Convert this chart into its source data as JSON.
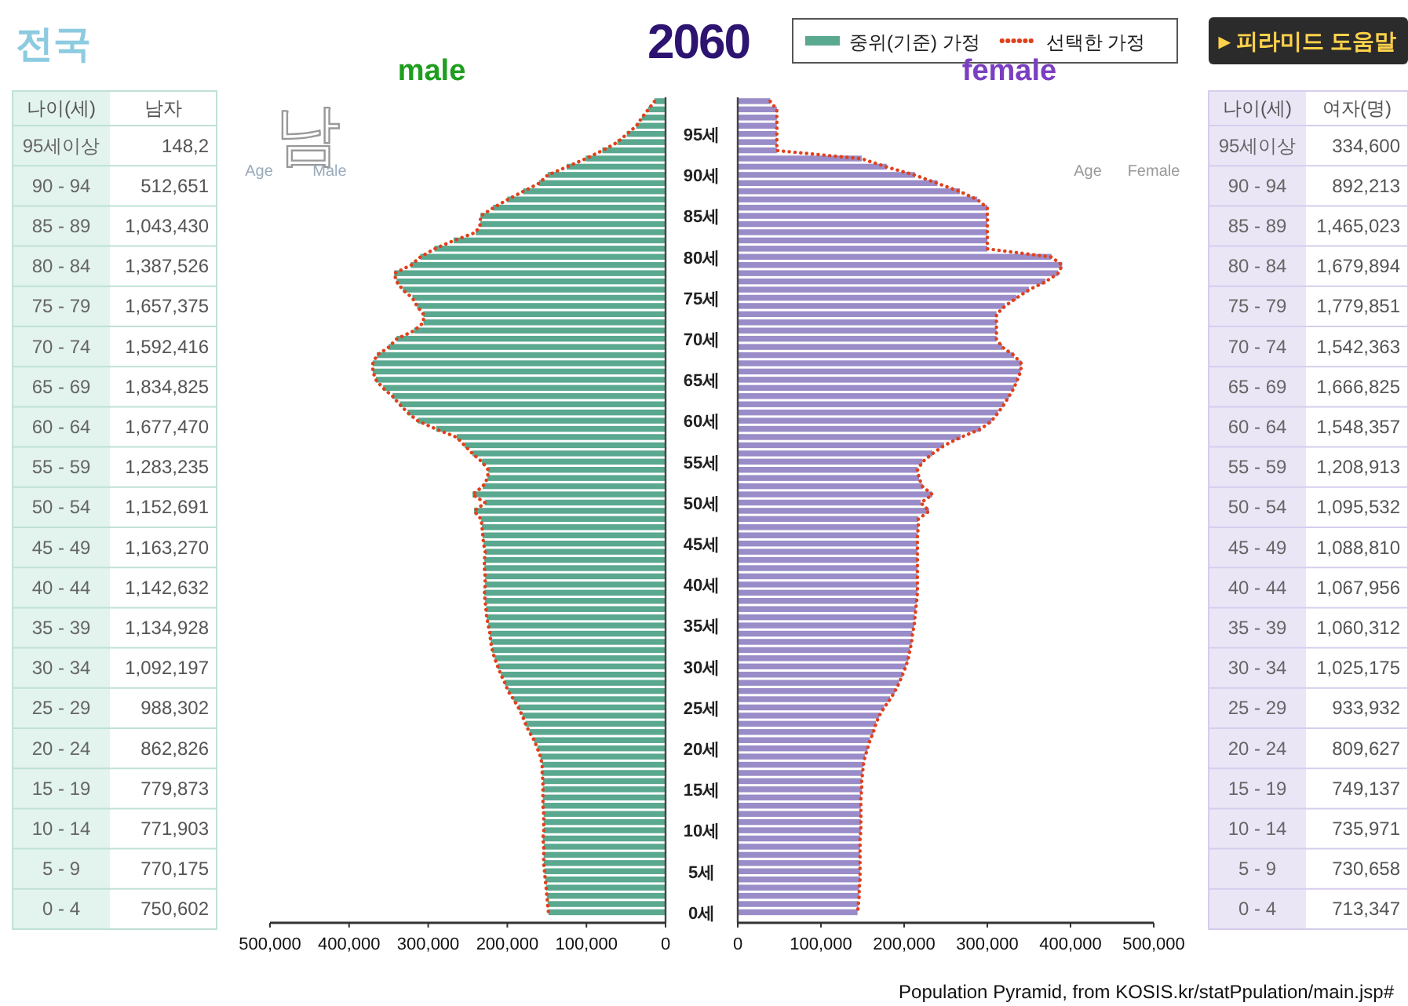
{
  "chart_data": [
    {
      "type": "other",
      "title": "2060",
      "annotations": [
        "전국",
        "▸ 피라미드 도움말",
        "Population Pyramid, from KOSIS.kr/statPpulation/main.jsp#"
      ]
    },
    {
      "type": "other",
      "annotations": [
        "나이(세)",
        "남자",
        "95세이상",
        "148,2",
        "90 - 94",
        "512,651",
        "85 - 89",
        "1,043,430",
        "80 - 84",
        "1,387,526",
        "75 - 79",
        "1,657,375",
        "70 - 74",
        "1,592,416",
        "65 - 69",
        "1,834,825",
        "60 - 64",
        "1,677,470",
        "55 - 59",
        "1,283,235",
        "50 - 54",
        "1,152,691",
        "45 - 49",
        "1,163,270",
        "40 - 44",
        "1,142,632",
        "35 - 39",
        "1,134,928",
        "30 - 34",
        "1,092,197",
        "25 - 29",
        "988,302",
        "20 - 24",
        "862,826",
        "15 - 19",
        "779,873",
        "10 - 14",
        "771,903",
        "5 - 9",
        "770,175",
        "0 - 4",
        "750,602"
      ]
    },
    {
      "type": "bar",
      "orientation": "horizontal",
      "title": "male",
      "legend": "top",
      "tick_labels": "x",
      "annotations": [
        "남",
        "Age",
        "Male"
      ],
      "xlim": [
        500000,
        0
      ],
      "xticks": [
        {
          "value": 500000,
          "label": "500,000"
        },
        {
          "value": 400000,
          "label": "400,000"
        },
        {
          "value": 300000,
          "label": "300,000"
        },
        {
          "value": 200000,
          "label": "200,000"
        },
        {
          "value": 100000,
          "label": "100,000"
        },
        0
      ],
      "categories": [
        null,
        null,
        null,
        null,
        null,
        null,
        null,
        null,
        null,
        null,
        null,
        null,
        null,
        null,
        null,
        null,
        null,
        null,
        null,
        null,
        null,
        null,
        null,
        null,
        null,
        null,
        null,
        null,
        null,
        null,
        null,
        null,
        null,
        null,
        null,
        null,
        null,
        null,
        null,
        null,
        null,
        null,
        null,
        null,
        null,
        null,
        null,
        null,
        null,
        null,
        null,
        null,
        null,
        null,
        null,
        null,
        null,
        null,
        null,
        null,
        null,
        null,
        null,
        null,
        null,
        null,
        null,
        null,
        null,
        null,
        null,
        null,
        null,
        null,
        null,
        null,
        null,
        null,
        null,
        null,
        null,
        null,
        null,
        null,
        null,
        null,
        null,
        null,
        null,
        null,
        null,
        null,
        null,
        null,
        null,
        null,
        null,
        null,
        null,
        null
      ],
      "series": [
        {
          "name": "중위(기준) 가정",
          "color": "#5aa88f",
          "values": [
            14000,
            22000,
            30000,
            37000,
            49000,
            61000,
            80000,
            101000,
            125000,
            149000,
            160000,
            180000,
            200000,
            218000,
            234000,
            234000,
            240000,
            268000,
            292000,
            310000,
            322000,
            343000,
            340000,
            332000,
            320000,
            314000,
            306000,
            306000,
            318000,
            340000,
            350000,
            365000,
            370000,
            370000,
            366000,
            357000,
            345000,
            336000,
            326000,
            313000,
            290000,
            264000,
            254000,
            244000,
            232000,
            224000,
            225000,
            231000,
            244000,
            228000,
            242000,
            233000,
            232000,
            231000,
            230000,
            228000,
            229000,
            229000,
            228000,
            228000,
            229000,
            228000,
            227000,
            226000,
            224000,
            222000,
            221000,
            219000,
            216000,
            212000,
            208000,
            203000,
            199000,
            192000,
            186000,
            181000,
            177000,
            172000,
            166000,
            162000,
            158000,
            156000,
            156000,
            155000,
            155000,
            155000,
            155000,
            154000,
            154000,
            154000,
            155000,
            154000,
            154000,
            154000,
            153000,
            152000,
            151000,
            150000,
            149000,
            148000
          ]
        },
        {
          "name": "선택한 가정",
          "type": "line",
          "line_style": "dotted",
          "color": "#e0401c",
          "values": [
            14000,
            22000,
            30000,
            37000,
            49000,
            61000,
            80000,
            101000,
            125000,
            149000,
            160000,
            180000,
            200000,
            218000,
            234000,
            234000,
            240000,
            268000,
            292000,
            310000,
            322000,
            343000,
            340000,
            332000,
            320000,
            314000,
            306000,
            306000,
            318000,
            340000,
            350000,
            365000,
            370000,
            370000,
            366000,
            357000,
            345000,
            336000,
            326000,
            313000,
            290000,
            264000,
            254000,
            244000,
            232000,
            224000,
            225000,
            231000,
            244000,
            228000,
            242000,
            233000,
            232000,
            231000,
            230000,
            228000,
            229000,
            229000,
            228000,
            228000,
            229000,
            228000,
            227000,
            226000,
            224000,
            222000,
            221000,
            219000,
            216000,
            212000,
            208000,
            203000,
            199000,
            192000,
            186000,
            181000,
            177000,
            172000,
            166000,
            162000,
            158000,
            156000,
            156000,
            155000,
            155000,
            155000,
            155000,
            154000,
            154000,
            154000,
            155000,
            154000,
            154000,
            154000,
            153000,
            152000,
            151000,
            150000,
            149000,
            148000
          ]
        }
      ]
    },
    {
      "type": "bar",
      "orientation": "horizontal",
      "title": "female",
      "annotations": [
        "Age",
        "Female"
      ],
      "xlim": [
        0,
        500000
      ],
      "xticks": [
        0,
        {
          "value": 100000,
          "label": "100,000"
        },
        {
          "value": 200000,
          "label": "200,000"
        },
        {
          "value": 300000,
          "label": "300,000"
        },
        {
          "value": 400000,
          "label": "400,000"
        },
        {
          "value": 500000,
          "label": "500,000"
        }
      ],
      "categories": [
        null,
        null,
        null,
        null,
        "95세",
        null,
        null,
        null,
        null,
        "90세",
        null,
        null,
        null,
        null,
        "85세",
        null,
        null,
        null,
        null,
        "80세",
        null,
        null,
        null,
        null,
        "75세",
        null,
        null,
        null,
        null,
        "70세",
        null,
        null,
        null,
        null,
        "65세",
        null,
        null,
        null,
        null,
        "60세",
        null,
        null,
        null,
        null,
        "55세",
        null,
        null,
        null,
        null,
        "50세",
        null,
        null,
        null,
        null,
        "45세",
        null,
        null,
        null,
        null,
        "40세",
        null,
        null,
        null,
        null,
        "35세",
        null,
        null,
        null,
        null,
        "30세",
        null,
        null,
        null,
        null,
        "25세",
        null,
        null,
        null,
        null,
        "20세",
        null,
        null,
        null,
        null,
        "15세",
        null,
        null,
        null,
        null,
        "10세",
        null,
        null,
        null,
        null,
        "5세",
        null,
        null,
        null,
        null,
        "0세"
      ],
      "series": [
        {
          "color": "#9a8cc8",
          "values": [
            39000,
            47000,
            47000,
            47000,
            47000,
            47000,
            47000,
            149000,
            179000,
            213000,
            240000,
            267000,
            288000,
            300000,
            300000,
            300000,
            300000,
            300000,
            300000,
            377000,
            390000,
            385000,
            370000,
            350000,
            335000,
            321000,
            311000,
            311000,
            311000,
            311000,
            318000,
            332000,
            341000,
            340000,
            336000,
            332000,
            326000,
            320000,
            313000,
            305000,
            292000,
            268000,
            248000,
            234000,
            222000,
            216000,
            218000,
            222000,
            234000,
            220000,
            230000,
            217000,
            217000,
            216000,
            216000,
            216000,
            216000,
            216000,
            216000,
            216000,
            216000,
            215000,
            214000,
            213000,
            212000,
            210000,
            209000,
            207000,
            205000,
            202000,
            198000,
            194000,
            189000,
            183000,
            176000,
            170000,
            166000,
            163000,
            159000,
            156000,
            153000,
            151000,
            150000,
            149000,
            149000,
            148000,
            148000,
            148000,
            148000,
            148000,
            147000,
            147000,
            147000,
            147000,
            147000,
            147000,
            146000,
            146000,
            145000,
            144000
          ]
        },
        {
          "type": "line",
          "line_style": "dotted",
          "color": "#e0401c",
          "values": [
            39000,
            47000,
            47000,
            47000,
            47000,
            47000,
            47000,
            149000,
            179000,
            213000,
            240000,
            267000,
            288000,
            300000,
            300000,
            300000,
            300000,
            300000,
            300000,
            377000,
            390000,
            385000,
            370000,
            350000,
            335000,
            321000,
            311000,
            311000,
            311000,
            311000,
            318000,
            332000,
            341000,
            340000,
            336000,
            332000,
            326000,
            320000,
            313000,
            305000,
            292000,
            268000,
            248000,
            234000,
            222000,
            216000,
            218000,
            222000,
            234000,
            220000,
            230000,
            217000,
            217000,
            216000,
            216000,
            216000,
            216000,
            216000,
            216000,
            216000,
            216000,
            215000,
            214000,
            213000,
            212000,
            210000,
            209000,
            207000,
            205000,
            202000,
            198000,
            194000,
            189000,
            183000,
            176000,
            170000,
            166000,
            163000,
            159000,
            156000,
            153000,
            151000,
            150000,
            149000,
            149000,
            148000,
            148000,
            148000,
            148000,
            148000,
            147000,
            147000,
            147000,
            147000,
            147000,
            147000,
            146000,
            146000,
            145000,
            144000
          ]
        }
      ]
    },
    {
      "type": "other",
      "annotations": [
        "나이(세)",
        "여자(명)",
        "95세이상",
        "334,600",
        "90 - 94",
        "892,213",
        "85 - 89",
        "1,465,023",
        "80 - 84",
        "1,679,894",
        "75 - 79",
        "1,779,851",
        "70 - 74",
        "1,542,363",
        "65 - 69",
        "1,666,825",
        "60 - 64",
        "1,548,357",
        "55 - 59",
        "1,208,913",
        "50 - 54",
        "1,095,532",
        "45 - 49",
        "1,088,810",
        "40 - 44",
        "1,067,956",
        "35 - 39",
        "1,060,312",
        "30 - 34",
        "1,025,175",
        "25 - 29",
        "933,932",
        "20 - 24",
        "809,627",
        "15 - 19",
        "749,137",
        "10 - 14",
        "735,971",
        "5 - 9",
        "730,658",
        "0 - 4",
        "713,347"
      ]
    }
  ]
}
